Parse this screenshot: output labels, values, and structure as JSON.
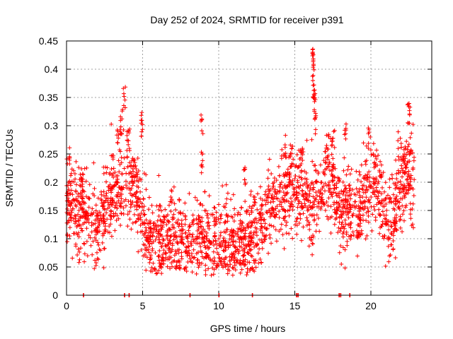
{
  "chart_data": {
    "type": "scatter",
    "title": "Day 252 of 2024, SRMTID for receiver p391",
    "xlabel": "GPS time / hours",
    "ylabel": "SRMTID / TECUs",
    "xlim": [
      0,
      24
    ],
    "ylim": [
      0,
      0.45
    ],
    "xticks": [
      0,
      5,
      10,
      15,
      20
    ],
    "xtick_labels": [
      "0",
      "5",
      "10",
      "15",
      "20"
    ],
    "yticks": [
      0,
      0.05,
      0.1,
      0.15,
      0.2,
      0.25,
      0.3,
      0.35,
      0.4,
      0.45
    ],
    "ytick_labels": [
      "0",
      "0.05",
      "0.1",
      "0.15",
      "0.2",
      "0.25",
      "0.3",
      "0.35",
      "0.4",
      "0.45"
    ],
    "grid": true,
    "marker": "+",
    "color": "#ff0000",
    "point_count": 2300,
    "zero_value_times": [
      1.1,
      3.8,
      4.1,
      8.1,
      10.0,
      12.2,
      15.1,
      15.2,
      17.9,
      18.0,
      18.6
    ],
    "features": [
      {
        "center": 0.15,
        "width": 0.3,
        "level": 0.21
      },
      {
        "center": 0.2,
        "width": 0.05,
        "level": 0.265
      },
      {
        "center": 1.05,
        "width": 0.1,
        "level": 0.215
      },
      {
        "center": 3.0,
        "width": 0.15,
        "level": 0.255
      },
      {
        "center": 3.35,
        "width": 0.15,
        "level": 0.3
      },
      {
        "center": 3.6,
        "width": 0.2,
        "level": 0.33
      },
      {
        "center": 3.8,
        "width": 0.15,
        "level": 0.37
      },
      {
        "center": 4.05,
        "width": 0.2,
        "level": 0.3
      },
      {
        "center": 4.4,
        "width": 0.2,
        "level": 0.245
      },
      {
        "center": 4.95,
        "width": 0.1,
        "level": 0.325
      },
      {
        "center": 8.9,
        "width": 0.15,
        "level": 0.32
      },
      {
        "center": 8.9,
        "width": 0.1,
        "level": 0.255
      },
      {
        "center": 11.7,
        "width": 0.15,
        "level": 0.24
      },
      {
        "center": 14.3,
        "width": 0.2,
        "level": 0.285
      },
      {
        "center": 14.8,
        "width": 0.2,
        "level": 0.27
      },
      {
        "center": 15.4,
        "width": 0.3,
        "level": 0.26
      },
      {
        "center": 16.2,
        "width": 0.08,
        "level": 0.445
      },
      {
        "center": 16.25,
        "width": 0.1,
        "level": 0.41
      },
      {
        "center": 16.3,
        "width": 0.12,
        "level": 0.37
      },
      {
        "center": 16.35,
        "width": 0.1,
        "level": 0.33
      },
      {
        "center": 16.2,
        "width": 0.12,
        "level": 0.39
      },
      {
        "center": 17.2,
        "width": 0.3,
        "level": 0.285
      },
      {
        "center": 17.5,
        "width": 0.3,
        "level": 0.3
      },
      {
        "center": 18.3,
        "width": 0.15,
        "level": 0.32
      },
      {
        "center": 19.9,
        "width": 0.15,
        "level": 0.3
      },
      {
        "center": 20.2,
        "width": 0.2,
        "level": 0.26
      },
      {
        "center": 21.9,
        "width": 0.25,
        "level": 0.29
      },
      {
        "center": 22.5,
        "width": 0.2,
        "level": 0.34
      },
      {
        "center": 22.3,
        "width": 0.3,
        "level": 0.275
      }
    ]
  }
}
